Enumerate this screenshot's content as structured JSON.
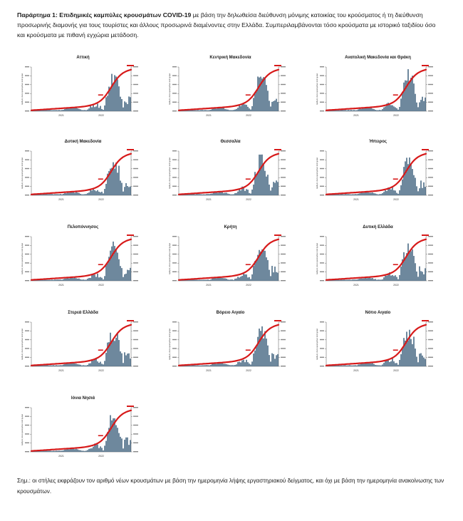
{
  "caption": {
    "label": "Παράρτημα 1:",
    "title": "Επιδημικές καμπύλες κρουσμάτων COVID-19",
    "text": "με βάση την δηλωθείσα διεύθυνση μόνιμης κατοικίας του κρούσματος ή τη διεύθυνση προσωρινής διαμονής για τους τουρίστες και άλλους προσωρινά διαμένοντες στην Ελλάδα. Συμπεριλαμβάνονται τόσο κρούσματα με ιστορικό ταξιδίου όσο και κρούσματα με πιθανή εγχώρια μετάδοση."
  },
  "y_axis_label": "Αριθμός νέων κρουσμάτων ανά ημέρα",
  "x_ticks": [
    "2021",
    "2022"
  ],
  "colors": {
    "bars": "#4a6a85",
    "cumulative": "#d71a1a",
    "text": "#1a1a1a"
  },
  "panels": [
    {
      "name": "Αττική"
    },
    {
      "name": "Κεντρική Μακεδονία"
    },
    {
      "name": "Ανατολική Μακεδονία και Θράκη"
    },
    {
      "name": "Δυτική Μακεδονία"
    },
    {
      "name": "Θεσσαλία"
    },
    {
      "name": "Ήπειρος"
    },
    {
      "name": "Πελοπόννησος"
    },
    {
      "name": "Κρήτη"
    },
    {
      "name": "Δυτική Ελλάδα"
    },
    {
      "name": "Στερεά Ελλάδα"
    },
    {
      "name": "Βόρειο Αιγαίο"
    },
    {
      "name": "Νότιο Αιγαίο"
    },
    {
      "name": "Ιόνια Νησιά"
    }
  ],
  "note": "Σημ.: οι στήλες εκφράζουν τον αριθμό νέων κρουσμάτων με βάση την ημερομηνία λήψης εργαστηριακού δείγματος, και όχι με βάση την ημερομηνία ανακοίνωσης των κρουσμάτων."
}
